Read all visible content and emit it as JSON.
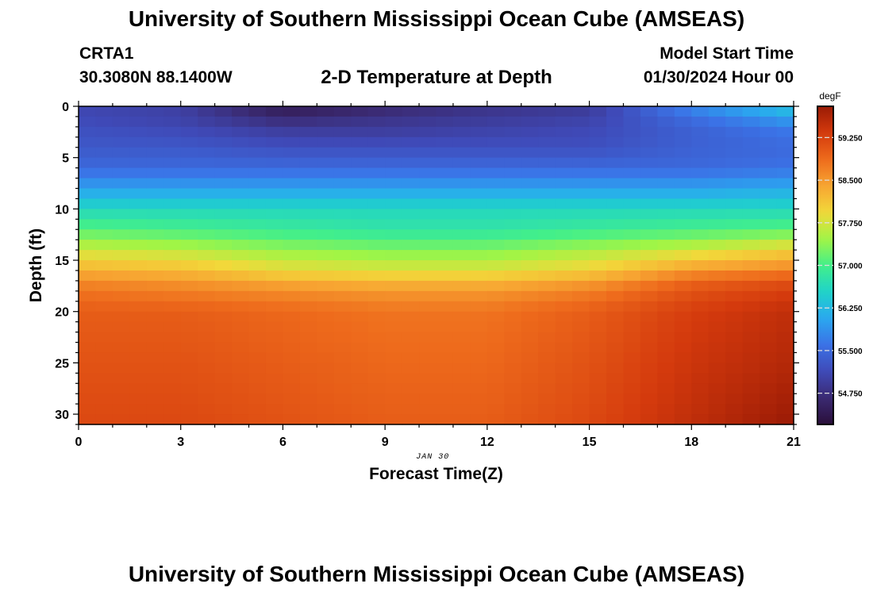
{
  "header": {
    "title": "University of Southern Mississippi Ocean Cube (AMSEAS)",
    "station": "CRTA1",
    "coords": "30.3080N  88.1400W",
    "subtitle": "2-D Temperature at Depth",
    "model_start_label": "Model Start Time",
    "model_start_value": "01/30/2024 Hour 00"
  },
  "footer": {
    "title": "University of Southern Mississippi Ocean Cube (AMSEAS)"
  },
  "colors": {
    "palette": [
      "#2a0f3a",
      "#3b2a72",
      "#3f4ab8",
      "#3b72e6",
      "#2aa8f0",
      "#1fd3c9",
      "#43ef8a",
      "#a2f545",
      "#f2d83a",
      "#f7a532",
      "#ee6b1c",
      "#d43a0d",
      "#9a1a05"
    ]
  },
  "chart_data": {
    "type": "heatmap",
    "title": "2-D Temperature at Depth",
    "xlabel": "Forecast Time(Z)",
    "ylabel": "Depth (ft)",
    "x_annotation": "JAN 30",
    "xlim": [
      0,
      21
    ],
    "ylim": [
      0,
      31
    ],
    "y_inverted": true,
    "x_ticks": [
      0,
      3,
      6,
      9,
      12,
      15,
      18,
      21
    ],
    "y_ticks": [
      0,
      5,
      10,
      15,
      20,
      25,
      30
    ],
    "colorbar": {
      "label": "degF",
      "range": [
        54.2,
        59.8
      ],
      "ticks": [
        "59.250",
        "58.500",
        "57.750",
        "57.000",
        "56.250",
        "55.500",
        "54.750"
      ],
      "tick_values": [
        59.25,
        58.5,
        57.75,
        57.0,
        56.25,
        55.5,
        54.75
      ]
    },
    "grid_x_hours": [
      0,
      3,
      6,
      9,
      12,
      15,
      18,
      21
    ],
    "grid_depth_ft": [
      0,
      1,
      2,
      4,
      6,
      8,
      10,
      12,
      14,
      16,
      17,
      18,
      20,
      25,
      31
    ],
    "temperature_degF": [
      [
        55.1,
        55.0,
        54.4,
        54.6,
        54.8,
        54.9,
        55.8,
        56.4
      ],
      [
        55.1,
        55.0,
        54.6,
        54.8,
        54.9,
        55.0,
        55.6,
        56.1
      ],
      [
        55.2,
        55.1,
        54.9,
        54.9,
        55.0,
        55.1,
        55.4,
        55.7
      ],
      [
        55.3,
        55.3,
        55.2,
        55.2,
        55.2,
        55.2,
        55.4,
        55.5
      ],
      [
        55.5,
        55.5,
        55.5,
        55.5,
        55.5,
        55.5,
        55.5,
        55.6
      ],
      [
        56.0,
        56.0,
        56.0,
        56.0,
        56.0,
        56.0,
        56.0,
        56.1
      ],
      [
        56.6,
        56.6,
        56.6,
        56.6,
        56.6,
        56.6,
        56.6,
        56.6
      ],
      [
        57.1,
        57.0,
        56.9,
        56.8,
        56.8,
        56.9,
        57.0,
        57.1
      ],
      [
        57.7,
        57.6,
        57.4,
        57.3,
        57.3,
        57.5,
        57.7,
        58.0
      ],
      [
        58.3,
        58.2,
        57.9,
        57.8,
        57.8,
        58.0,
        58.5,
        58.7
      ],
      [
        58.6,
        58.5,
        58.3,
        58.2,
        58.2,
        58.4,
        58.9,
        59.1
      ],
      [
        58.8,
        58.7,
        58.6,
        58.5,
        58.5,
        58.7,
        59.1,
        59.3
      ],
      [
        59.0,
        59.0,
        58.9,
        58.8,
        58.8,
        59.0,
        59.3,
        59.5
      ],
      [
        59.1,
        59.1,
        59.0,
        58.9,
        58.9,
        59.1,
        59.4,
        59.6
      ],
      [
        59.2,
        59.2,
        59.1,
        59.0,
        59.0,
        59.2,
        59.5,
        59.8
      ]
    ]
  }
}
